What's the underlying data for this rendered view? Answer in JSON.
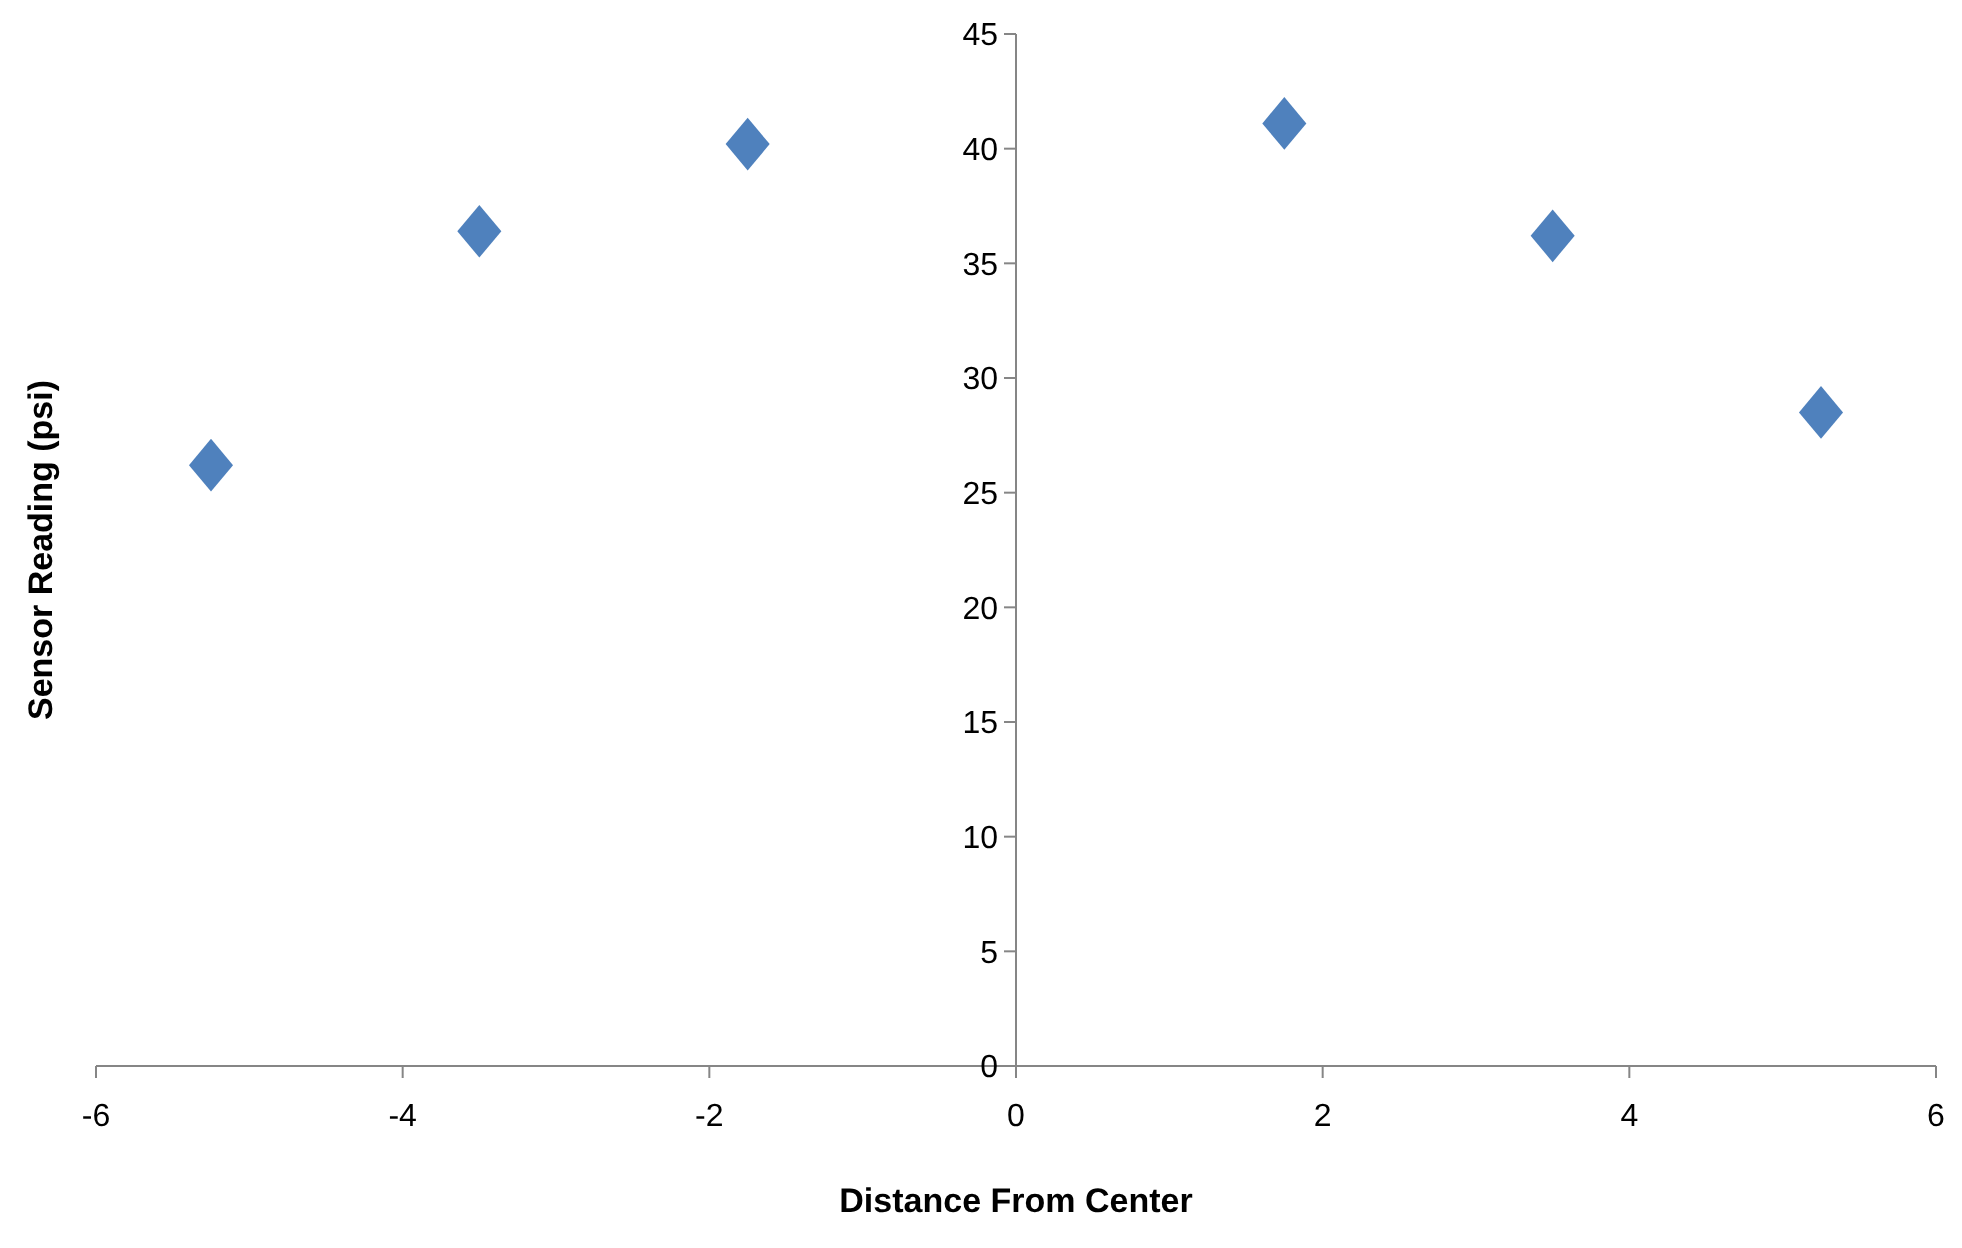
{
  "chart_data": {
    "type": "scatter",
    "xlabel": "Distance From Center",
    "ylabel": "Sensor Reading (psi)",
    "x": [
      -5.25,
      -3.5,
      -1.75,
      1.75,
      3.5,
      5.25
    ],
    "series": [
      {
        "color": "#4f81bd",
        "values": [
          26.2,
          36.4,
          40.2,
          41.1,
          36.2,
          28.5
        ]
      }
    ],
    "xlim": [
      -6,
      6
    ],
    "xticks": [
      -6,
      -4,
      -2,
      0,
      2,
      4,
      6
    ],
    "ylim": [
      0,
      45
    ],
    "yticks": [
      0,
      5,
      10,
      15,
      20,
      25,
      30,
      35,
      40,
      45
    ],
    "grid": false,
    "marker": "diamond"
  }
}
